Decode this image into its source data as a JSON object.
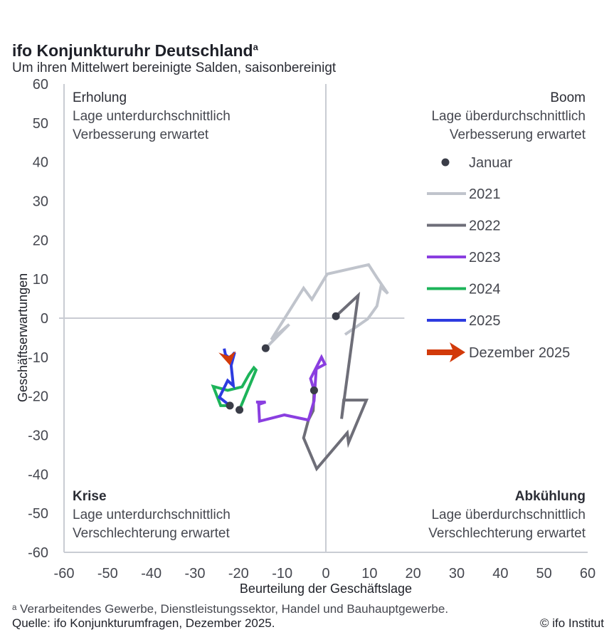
{
  "header": {
    "title": "ifo Konjunkturuhr Deutschland",
    "title_sup": "a",
    "subtitle": "Um ihren Mittelwert bereinigte Salden, saisonbereinigt"
  },
  "quadrants": {
    "top_left": {
      "title": "Erholung",
      "line1": "Lage unterdurchschnittlich",
      "line2": "Verbesserung erwartet"
    },
    "top_right": {
      "title": "Boom",
      "line1": "Lage überdurchschnittlich",
      "line2": "Verbesserung erwartet"
    },
    "bottom_left": {
      "title": "Krise",
      "line1": "Lage unterdurchschnittlich",
      "line2": "Verschlechterung erwartet"
    },
    "bottom_right": {
      "title": "Abkühlung",
      "line1": "Lage überdurchschnittlich",
      "line2": "Verschlechterung erwartet"
    }
  },
  "footer": {
    "note": "ᵃ Verarbeitendes Gewerbe, Dienstleistungssektor, Handel und Bauhauptgewerbe.",
    "source": "Quelle: ifo Konjunkturumfragen, Dezember 2025.",
    "copyright": "© ifo Institut"
  },
  "chart_data": {
    "type": "line",
    "title": "ifo Konjunkturuhr Deutschland",
    "xlabel": "Beurteilung der Geschäftslage",
    "ylabel": "Geschäftserwartungen",
    "xlim": [
      -60,
      60
    ],
    "ylim": [
      -60,
      60
    ],
    "xticks": [
      -60,
      -50,
      -40,
      -30,
      -20,
      -10,
      0,
      10,
      20,
      30,
      40,
      50,
      60
    ],
    "yticks": [
      60,
      50,
      40,
      30,
      20,
      10,
      0,
      -10,
      -20,
      -30,
      -40,
      -50,
      -60
    ],
    "legend_position": "right",
    "marker_label": "Januar",
    "marker_color": "#3a3d48",
    "series": [
      {
        "name": "2021",
        "color": "#c0c4cc",
        "points": [
          [
            -13.8,
            -7.7
          ],
          [
            -8.4,
            -1.6
          ],
          [
            -12.5,
            -5.5
          ],
          [
            -5.1,
            7.7
          ],
          [
            -3.2,
            4.8
          ],
          [
            0.3,
            11.3
          ],
          [
            9.8,
            13.7
          ],
          [
            11.7,
            10.4
          ],
          [
            14.2,
            6.3
          ],
          [
            12.6,
            8.0
          ],
          [
            11.7,
            3.1
          ],
          [
            9.6,
            -0.2
          ],
          [
            4.4,
            -4.2
          ]
        ]
      },
      {
        "name": "2022",
        "color": "#6e6e78",
        "points": [
          [
            2.3,
            0.5
          ],
          [
            7.4,
            5.8
          ],
          [
            3.6,
            -25.8
          ],
          [
            4.1,
            -21.0
          ],
          [
            9.3,
            -21.0
          ],
          [
            5.2,
            -31.9
          ],
          [
            4.9,
            -29.4
          ],
          [
            -2.1,
            -38.6
          ],
          [
            -5.1,
            -30.7
          ],
          [
            -4.0,
            -26.1
          ],
          [
            -2.9,
            -23.7
          ],
          [
            -2.7,
            -18.5
          ]
        ]
      },
      {
        "name": "2023",
        "color": "#8a3ee0",
        "points": [
          [
            -2.7,
            -18.5
          ],
          [
            -3.5,
            -15.5
          ],
          [
            -1.0,
            -10.0
          ],
          [
            -0.2,
            -11.8
          ],
          [
            -2.2,
            -13.0
          ],
          [
            -2.7,
            -21.2
          ],
          [
            -4.0,
            -26.1
          ],
          [
            -9.5,
            -24.8
          ],
          [
            -15.2,
            -26.4
          ],
          [
            -15.4,
            -22.1
          ],
          [
            -13.8,
            -21.5
          ],
          [
            -16.0,
            -21.5
          ]
        ]
      },
      {
        "name": "2024",
        "color": "#1db45a",
        "points": [
          [
            -19.8,
            -23.5
          ],
          [
            -16.0,
            -13.3
          ],
          [
            -16.5,
            -12.7
          ],
          [
            -17.6,
            -14.4
          ],
          [
            -19.2,
            -17.6
          ],
          [
            -22.5,
            -18.5
          ],
          [
            -25.8,
            -17.5
          ],
          [
            -24.1,
            -22.4
          ],
          [
            -22.0,
            -22.4
          ]
        ]
      },
      {
        "name": "2025",
        "color": "#2d3be0",
        "points": [
          [
            -22.0,
            -22.4
          ],
          [
            -24.4,
            -20.3
          ],
          [
            -22.5,
            -16.0
          ],
          [
            -21.2,
            -17.3
          ],
          [
            -21.7,
            -12.1
          ],
          [
            -20.9,
            -8.8
          ],
          [
            -22.0,
            -10.3
          ],
          [
            -23.0,
            -9.4
          ],
          [
            -23.3,
            -7.8
          ]
        ]
      }
    ],
    "january_points": [
      [
        -13.8,
        -7.7
      ],
      [
        2.3,
        0.5
      ],
      [
        -2.7,
        -18.5
      ],
      [
        -19.8,
        -23.5
      ],
      [
        -22.0,
        -22.4
      ]
    ],
    "latest": {
      "name": "Dezember 2025",
      "color": "#d23a0a",
      "point": [
        -22.3,
        -11.0
      ]
    }
  }
}
